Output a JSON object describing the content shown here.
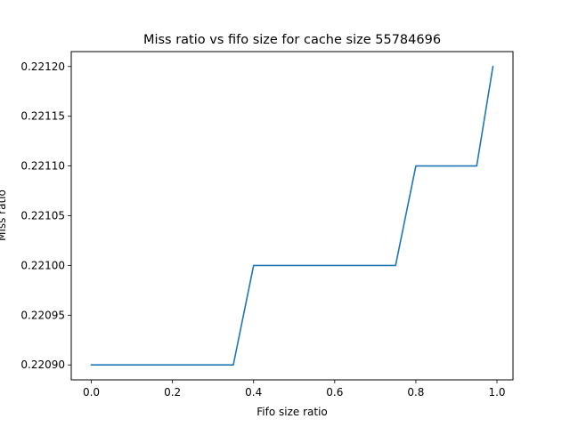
{
  "chart_data": {
    "type": "line",
    "title": "Miss ratio vs fifo size for cache size 55784696",
    "xlabel": "Fifo size ratio",
    "ylabel": "Miss ratio",
    "xlim": [
      -0.0495,
      1.0395
    ],
    "ylim": [
      0.220885,
      0.221215
    ],
    "xticks": [
      0.0,
      0.2,
      0.4,
      0.6,
      0.8,
      1.0
    ],
    "xtick_labels": [
      "0.0",
      "0.2",
      "0.4",
      "0.6",
      "0.8",
      "1.0"
    ],
    "yticks": [
      0.2209,
      0.22095,
      0.221,
      0.22105,
      0.2211,
      0.22115,
      0.2212
    ],
    "ytick_labels": [
      "0.22090",
      "0.22095",
      "0.22100",
      "0.22105",
      "0.22110",
      "0.22115",
      "0.22120"
    ],
    "grid": false,
    "legend": "none",
    "series": [
      {
        "color": "#1f77b4",
        "x": [
          0.0,
          0.05,
          0.1,
          0.15,
          0.2,
          0.25,
          0.3,
          0.35,
          0.4,
          0.45,
          0.5,
          0.55,
          0.6,
          0.65,
          0.7,
          0.75,
          0.8,
          0.85,
          0.9,
          0.95,
          0.99
        ],
        "y": [
          0.2209,
          0.2209,
          0.2209,
          0.2209,
          0.2209,
          0.2209,
          0.2209,
          0.2209,
          0.221,
          0.221,
          0.221,
          0.221,
          0.221,
          0.221,
          0.221,
          0.221,
          0.2211,
          0.2211,
          0.2211,
          0.2211,
          0.2212
        ]
      }
    ]
  }
}
